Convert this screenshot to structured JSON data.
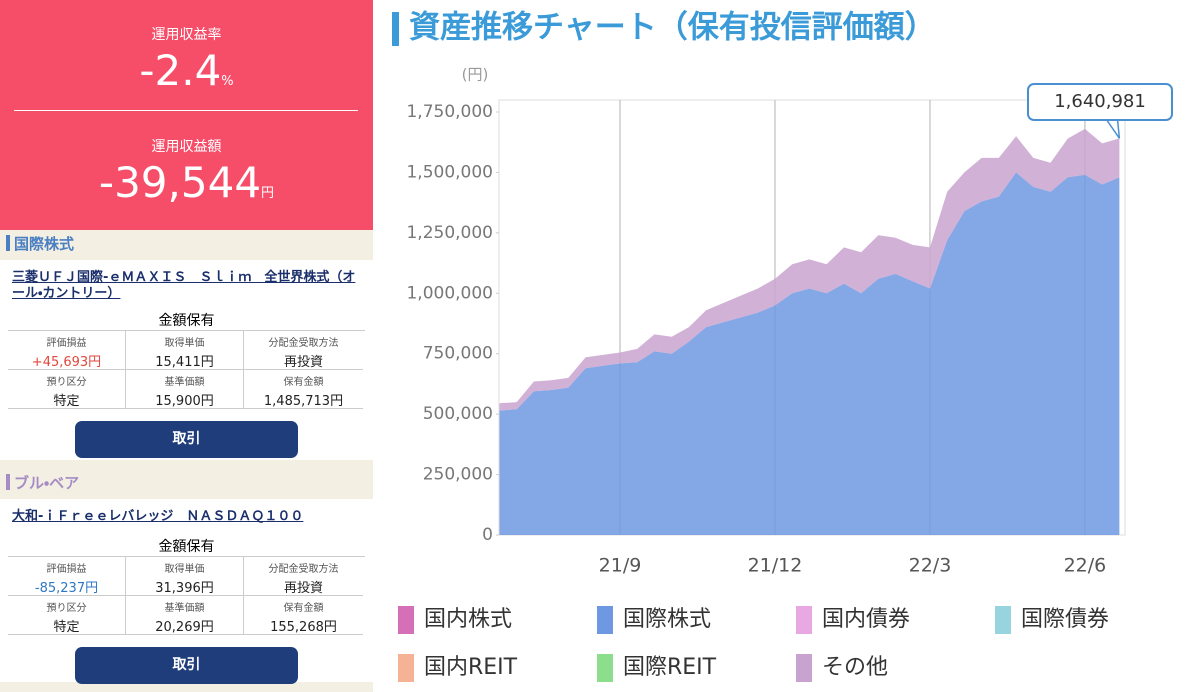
{
  "summary": {
    "rate_label": "運用収益率",
    "rate": "-2.4",
    "rate_unit": "%",
    "amount_label": "運用収益額",
    "amount": "-39,544",
    "amount_unit": "円"
  },
  "funds": [
    {
      "category": "国際株式",
      "name": "三菱ＵＦＪ国際-ｅＭＡＸＩＳ　Ｓｌｉｍ　全世界株式（オール・カントリー）",
      "holding": "金額保有",
      "fields": [
        {
          "label": "評価損益",
          "value": "+45,693円"
        },
        {
          "label": "取得単価",
          "value": "15,411円"
        },
        {
          "label": "分配金受取方法",
          "value": "再投資"
        },
        {
          "label": "預り区分",
          "value": "特定"
        },
        {
          "label": "基準価額",
          "value": "15,900円"
        },
        {
          "label": "保有金額",
          "value": "1,485,713円"
        }
      ],
      "button": "取引"
    },
    {
      "category": "ブル・ベア",
      "name": "大和-ｉＦｒｅｅレバレッジ　ＮＡＳＤＡＱ１００",
      "holding": "金額保有",
      "fields": [
        {
          "label": "評価損益",
          "value": "-85,237円"
        },
        {
          "label": "取得単価",
          "value": "31,396円"
        },
        {
          "label": "分配金受取方法",
          "value": "再投資"
        },
        {
          "label": "預り区分",
          "value": "特定"
        },
        {
          "label": "基準価額",
          "value": "20,269円"
        },
        {
          "label": "保有金額",
          "value": "155,268円"
        }
      ],
      "button": "取引"
    }
  ],
  "chart_data": {
    "type": "area",
    "stacked": true,
    "title": "資産推移チャート（保有投信評価額）",
    "y_unit": "(円)",
    "categories": [
      null,
      null,
      null,
      null,
      null,
      null,
      null,
      "21/9",
      null,
      null,
      null,
      null,
      null,
      null,
      null,
      null,
      "21/12",
      null,
      null,
      null,
      null,
      null,
      null,
      null,
      null,
      "22/3",
      null,
      null,
      null,
      null,
      null,
      null,
      null,
      null,
      "22/6",
      null,
      null
    ],
    "series": [
      {
        "name": "国内株式",
        "color": "#d46fb8",
        "values": [
          0,
          0,
          0,
          0,
          0,
          0,
          0,
          0,
          0,
          0,
          0,
          0,
          0,
          0,
          0,
          0,
          0,
          0,
          0,
          0,
          0,
          0,
          0,
          0,
          0,
          0,
          0,
          0,
          0,
          0,
          0,
          0,
          0,
          0,
          0,
          0,
          0
        ]
      },
      {
        "name": "国際株式",
        "color": "#6f98e2",
        "values": [
          515000,
          520000,
          595000,
          600000,
          610000,
          690000,
          700000,
          710000,
          715000,
          760000,
          750000,
          800000,
          860000,
          880000,
          900000,
          920000,
          950000,
          1000000,
          1020000,
          1000000,
          1040000,
          1000000,
          1060000,
          1080000,
          1050000,
          1020000,
          1220000,
          1340000,
          1380000,
          1400000,
          1500000,
          1440000,
          1420000,
          1480000,
          1490000,
          1450000,
          1480000
        ]
      },
      {
        "name": "国内債券",
        "color": "#e8a8e2",
        "values": [
          0,
          0,
          0,
          0,
          0,
          0,
          0,
          0,
          0,
          0,
          0,
          0,
          0,
          0,
          0,
          0,
          0,
          0,
          0,
          0,
          0,
          0,
          0,
          0,
          0,
          0,
          0,
          0,
          0,
          0,
          0,
          0,
          0,
          0,
          0,
          0,
          0
        ]
      },
      {
        "name": "国際債券",
        "color": "#98d4e0",
        "values": [
          0,
          0,
          0,
          0,
          0,
          0,
          0,
          0,
          0,
          0,
          0,
          0,
          0,
          0,
          0,
          0,
          0,
          0,
          0,
          0,
          0,
          0,
          0,
          0,
          0,
          0,
          0,
          0,
          0,
          0,
          0,
          0,
          0,
          0,
          0,
          0,
          0
        ]
      },
      {
        "name": "国内REIT",
        "color": "#f5b294",
        "values": [
          0,
          0,
          0,
          0,
          0,
          0,
          0,
          0,
          0,
          0,
          0,
          0,
          0,
          0,
          0,
          0,
          0,
          0,
          0,
          0,
          0,
          0,
          0,
          0,
          0,
          0,
          0,
          0,
          0,
          0,
          0,
          0,
          0,
          0,
          0,
          0,
          0
        ]
      },
      {
        "name": "国際REIT",
        "color": "#8cde8c",
        "values": [
          0,
          0,
          0,
          0,
          0,
          0,
          0,
          0,
          0,
          0,
          0,
          0,
          0,
          0,
          0,
          0,
          0,
          0,
          0,
          0,
          0,
          0,
          0,
          0,
          0,
          0,
          0,
          0,
          0,
          0,
          0,
          0,
          0,
          0,
          0,
          0,
          0
        ]
      },
      {
        "name": "その他",
        "color": "#c9a3cf",
        "values": [
          30000,
          30000,
          40000,
          40000,
          40000,
          45000,
          45000,
          45000,
          55000,
          70000,
          70000,
          60000,
          70000,
          80000,
          90000,
          100000,
          110000,
          120000,
          120000,
          120000,
          150000,
          170000,
          180000,
          150000,
          150000,
          170000,
          200000,
          160000,
          180000,
          160000,
          150000,
          120000,
          120000,
          160000,
          190000,
          170000,
          160981
        ]
      }
    ],
    "ylim": [
      0,
      1750000
    ],
    "yticks": [
      0,
      {
        "value": 250000,
        "label": "250,000"
      },
      {
        "value": 500000,
        "label": "500,000"
      },
      {
        "value": 750000,
        "label": "750,000"
      },
      {
        "value": 1000000,
        "label": "1,000,000"
      },
      {
        "value": 1250000,
        "label": "1,250,000"
      },
      {
        "value": 1500000,
        "label": "1,500,000"
      },
      {
        "value": 1750000,
        "label": "1,750,000"
      }
    ],
    "grid": "x",
    "annotation": "1,640,981"
  }
}
